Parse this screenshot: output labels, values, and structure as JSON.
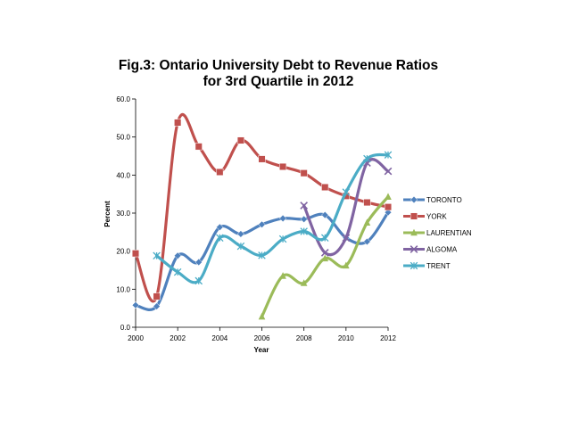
{
  "chart_data": {
    "type": "line",
    "title_lines": [
      "Fig.3: Ontario University Debt to Revenue Ratios",
      "for 3rd Quartile in 2012"
    ],
    "xlabel": "Year",
    "ylabel": "Percent",
    "xlim": [
      2000,
      2012
    ],
    "ylim": [
      0,
      60
    ],
    "x_ticks": [
      "2000",
      "2002",
      "2004",
      "2006",
      "2008",
      "2010",
      "2012"
    ],
    "y_ticks": [
      "0.0",
      "10.0",
      "20.0",
      "30.0",
      "40.0",
      "50.0",
      "60.0"
    ],
    "legend_position": "right",
    "series": [
      {
        "name": "TORONTO",
        "color": "#4f81bd",
        "marker": "diamond",
        "x": [
          2000,
          2001,
          2002,
          2003,
          2004,
          2005,
          2006,
          2007,
          2008,
          2009,
          2010,
          2011,
          2012
        ],
        "values": [
          5.8,
          5.5,
          18.8,
          17.1,
          26.3,
          24.5,
          27.0,
          28.6,
          28.4,
          29.5,
          23.5,
          22.5,
          30.2
        ]
      },
      {
        "name": "YORK",
        "color": "#c0504d",
        "marker": "square",
        "x": [
          2000,
          2001,
          2002,
          2003,
          2004,
          2005,
          2006,
          2007,
          2008,
          2009,
          2010,
          2011,
          2012
        ],
        "values": [
          19.4,
          8.1,
          53.8,
          47.5,
          40.8,
          49.1,
          44.2,
          42.2,
          40.5,
          36.8,
          34.5,
          32.8,
          31.6
        ]
      },
      {
        "name": "LAURENTIAN",
        "color": "#9bbb59",
        "marker": "triangle",
        "x": [
          2006,
          2007,
          2008,
          2009,
          2010,
          2011,
          2012
        ],
        "values": [
          2.8,
          13.5,
          11.6,
          18.1,
          16.2,
          27.5,
          34.3
        ]
      },
      {
        "name": "ALGOMA",
        "color": "#8064a2",
        "marker": "x",
        "x": [
          2008,
          2009,
          2010,
          2011,
          2012
        ],
        "values": [
          32.0,
          19.6,
          23.5,
          43.2,
          41.0
        ]
      },
      {
        "name": "TRENT",
        "color": "#4bacc6",
        "marker": "asterisk",
        "x": [
          2001,
          2002,
          2003,
          2004,
          2005,
          2006,
          2007,
          2008,
          2009,
          2010,
          2011,
          2012
        ],
        "values": [
          18.8,
          14.5,
          12.2,
          23.5,
          21.3,
          18.9,
          23.2,
          25.2,
          23.5,
          35.5,
          44.3,
          45.3
        ]
      }
    ]
  }
}
